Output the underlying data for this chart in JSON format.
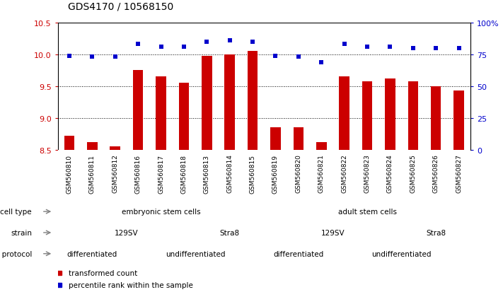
{
  "title": "GDS4170 / 10568150",
  "samples": [
    "GSM560810",
    "GSM560811",
    "GSM560812",
    "GSM560816",
    "GSM560817",
    "GSM560818",
    "GSM560813",
    "GSM560814",
    "GSM560815",
    "GSM560819",
    "GSM560820",
    "GSM560821",
    "GSM560822",
    "GSM560823",
    "GSM560824",
    "GSM560825",
    "GSM560826",
    "GSM560827"
  ],
  "bar_values": [
    8.72,
    8.62,
    8.55,
    9.75,
    9.65,
    9.55,
    9.98,
    10.0,
    10.05,
    8.85,
    8.85,
    8.62,
    9.65,
    9.58,
    9.62,
    9.57,
    9.5,
    9.43
  ],
  "dot_values": [
    74,
    73,
    73,
    83,
    81,
    81,
    85,
    86,
    85,
    74,
    73,
    69,
    83,
    81,
    81,
    80,
    80,
    80
  ],
  "ylim_left": [
    8.5,
    10.5
  ],
  "ylim_right": [
    0,
    100
  ],
  "bar_color": "#cc0000",
  "dot_color": "#0000cc",
  "grid_lines": [
    9.0,
    9.5,
    10.0
  ],
  "right_ticks": [
    0,
    25,
    50,
    75,
    100
  ],
  "right_labels": [
    "0",
    "25",
    "50",
    "75",
    "100%"
  ],
  "cell_type_spans": [
    {
      "text": "embryonic stem cells",
      "start": 0,
      "end": 8,
      "color": "#a8d8a8"
    },
    {
      "text": "adult stem cells",
      "start": 9,
      "end": 17,
      "color": "#55bb55"
    }
  ],
  "strain_spans": [
    {
      "text": "129SV",
      "start": 0,
      "end": 5,
      "color": "#b0b0e8"
    },
    {
      "text": "Stra8",
      "start": 6,
      "end": 8,
      "color": "#8888cc"
    },
    {
      "text": "129SV",
      "start": 9,
      "end": 14,
      "color": "#b0b0e8"
    },
    {
      "text": "Stra8",
      "start": 15,
      "end": 17,
      "color": "#8888cc"
    }
  ],
  "growth_spans": [
    {
      "text": "differentiated",
      "start": 0,
      "end": 2,
      "color": "#f0a0a0"
    },
    {
      "text": "undifferentiated",
      "start": 3,
      "end": 8,
      "color": "#cc6666"
    },
    {
      "text": "differentiated",
      "start": 9,
      "end": 11,
      "color": "#f0a0a0"
    },
    {
      "text": "undifferentiated",
      "start": 12,
      "end": 17,
      "color": "#cc6666"
    }
  ],
  "row_labels": [
    "cell type",
    "strain",
    "growth protocol"
  ],
  "legend": [
    {
      "label": "transformed count",
      "color": "#cc0000"
    },
    {
      "label": "percentile rank within the sample",
      "color": "#0000cc"
    }
  ]
}
